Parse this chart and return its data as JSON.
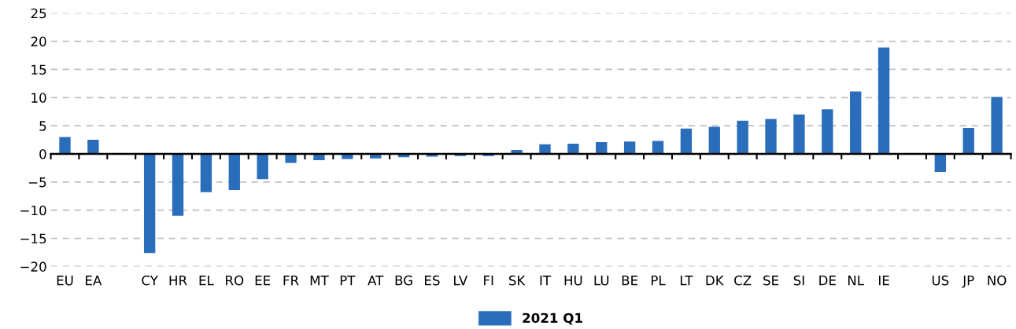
{
  "chart_data": {
    "type": "bar",
    "categories": [
      "EU",
      "EA",
      null,
      "CY",
      "HR",
      "EL",
      "RO",
      "EE",
      "FR",
      "MT",
      "PT",
      "AT",
      "BG",
      "ES",
      "LV",
      "FI",
      "SK",
      "IT",
      "HU",
      "LU",
      "BE",
      "PL",
      "LT",
      "DK",
      "CZ",
      "SE",
      "SI",
      "DE",
      "NL",
      "IE",
      null,
      "US",
      "JP",
      "NO"
    ],
    "series": [
      {
        "name": "2021 Q1",
        "color": "#2a6ebb",
        "values": [
          3.0,
          2.5,
          null,
          -17.6,
          -11.0,
          -6.8,
          -6.4,
          -4.5,
          -1.6,
          -1.1,
          -0.9,
          -0.8,
          -0.6,
          -0.5,
          -0.4,
          -0.4,
          0.7,
          1.7,
          1.8,
          2.1,
          2.2,
          2.3,
          4.5,
          4.8,
          5.9,
          6.2,
          7.0,
          7.9,
          11.1,
          18.9,
          null,
          -3.2,
          4.6,
          10.1
        ]
      }
    ],
    "ylim": [
      -20,
      25
    ],
    "yticks": [
      {
        "value": -20,
        "label": "−20"
      },
      {
        "value": -15,
        "label": "−15"
      },
      {
        "value": -10,
        "label": "−10"
      },
      {
        "value": -5,
        "label": "−5"
      },
      0,
      5,
      10,
      15,
      20,
      25
    ],
    "grid": "y",
    "legend": "bottom"
  }
}
